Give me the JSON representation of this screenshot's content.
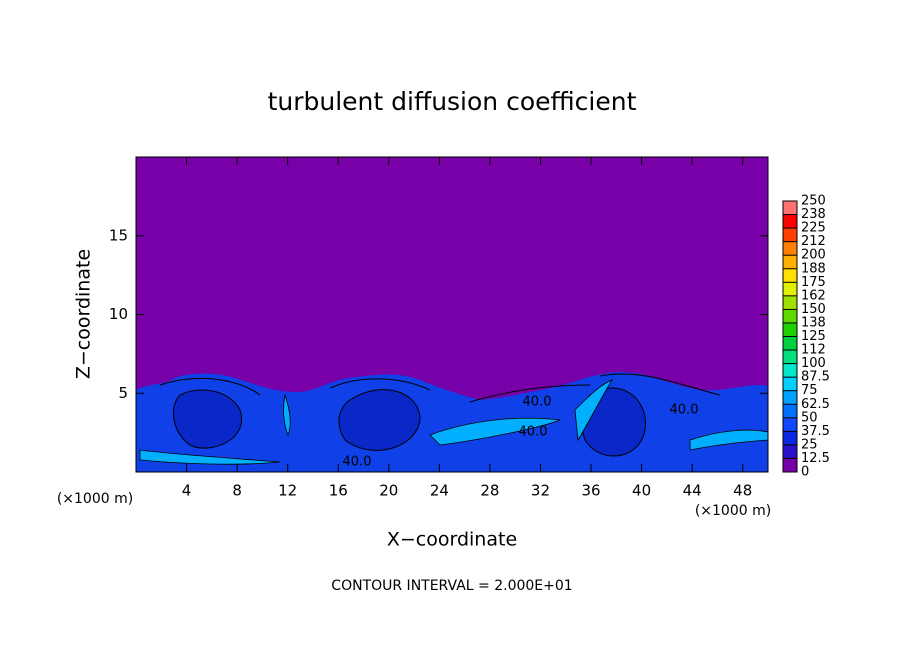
{
  "chart_data": {
    "type": "contour",
    "title": "turbulent diffusion coefficient",
    "xlabel": "X−coordinate",
    "ylabel": "Z−coordinate",
    "xunit": "(×1000 m)",
    "yunit": "(×1000 m)",
    "footer": "CONTOUR INTERVAL = 2.000E+01",
    "background_color": "#7800a8",
    "xlim": [
      0,
      50
    ],
    "xticks": [
      4,
      8,
      12,
      16,
      20,
      24,
      28,
      32,
      36,
      40,
      44,
      48
    ],
    "ylim": [
      0,
      20
    ],
    "yticks": [
      5,
      10,
      15
    ],
    "contour_labels": [
      "40.0",
      "40.0",
      "40.0",
      "40.0"
    ],
    "colorbar": {
      "ticks": [
        0,
        12.5,
        25,
        37.5,
        50,
        62.5,
        75,
        87.5,
        100,
        {
          "value": 112.5,
          "label": "112"
        },
        125,
        {
          "value": 137.5,
          "label": "138"
        },
        150,
        {
          "value": 162.5,
          "label": "162"
        },
        175,
        {
          "value": 187.5,
          "label": "188"
        },
        200,
        {
          "value": 212.5,
          "label": "212"
        },
        225,
        {
          "value": 237.5,
          "label": "238"
        },
        250
      ],
      "colors": [
        "#7800a8",
        "#2a10c8",
        "#0a28e0",
        "#1048ff",
        "#0070ff",
        "#00a0ff",
        "#00d0ff",
        "#00e8c8",
        "#00e080",
        "#00d040",
        "#20d000",
        "#60d800",
        "#a0e000",
        "#e0f000",
        "#ffe000",
        "#ffb000",
        "#ff8000",
        "#ff4000",
        "#ff0000",
        "#ff7070"
      ]
    }
  }
}
